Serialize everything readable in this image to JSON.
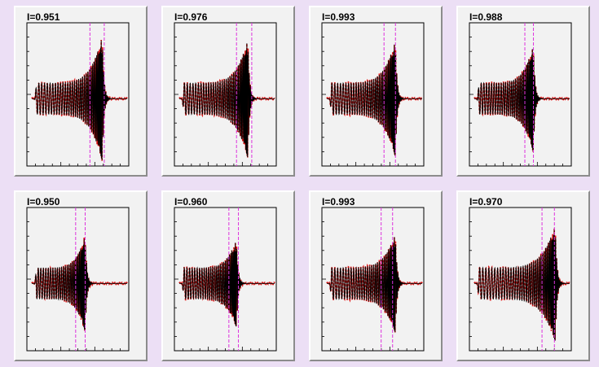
{
  "colors": {
    "background": "#ecdff5",
    "panel": "#f2f2f2",
    "waveform_model": "#000000",
    "waveform_data": "#dd1111",
    "window_lines": "#dd33dd"
  },
  "chart_data": [
    {
      "type": "line",
      "title": "I=0.951",
      "merger_at": 0.74,
      "window": [
        0.61,
        0.76
      ],
      "peak": 0.88,
      "series": [
        {
          "values": "model waveform"
        },
        {
          "values": "reconstructed waveform"
        }
      ]
    },
    {
      "type": "line",
      "title": "I=0.976",
      "merger_at": 0.72,
      "window": [
        0.6,
        0.76
      ],
      "peak": 0.84,
      "series": [
        {
          "values": "model waveform"
        },
        {
          "values": "reconstructed waveform"
        }
      ]
    },
    {
      "type": "line",
      "title": "I=0.993",
      "merger_at": 0.72,
      "window": [
        0.6,
        0.72
      ],
      "peak": 0.82,
      "series": [
        {
          "values": "model waveform"
        },
        {
          "values": "reconstructed waveform"
        }
      ]
    },
    {
      "type": "line",
      "title": "I=0.988",
      "merger_at": 0.62,
      "window": [
        0.53,
        0.62
      ],
      "peak": 0.76,
      "series": [
        {
          "values": "model waveform"
        },
        {
          "values": "reconstructed waveform"
        }
      ]
    },
    {
      "type": "line",
      "title": "I=0.950",
      "merger_at": 0.56,
      "window": [
        0.46,
        0.56
      ],
      "peak": 0.68,
      "series": [
        {
          "values": "model waveform"
        },
        {
          "values": "reconstructed waveform"
        }
      ]
    },
    {
      "type": "line",
      "title": "I=0.960",
      "merger_at": 0.6,
      "window": [
        0.52,
        0.62
      ],
      "peak": 0.62,
      "series": [
        {
          "values": "model waveform"
        },
        {
          "values": "reconstructed waveform"
        }
      ]
    },
    {
      "type": "line",
      "title": "I=0.993",
      "merger_at": 0.72,
      "window": [
        0.57,
        0.69
      ],
      "peak": 0.7,
      "series": [
        {
          "values": "model waveform"
        },
        {
          "values": "reconstructed waveform"
        }
      ]
    },
    {
      "type": "line",
      "title": "I=0.970",
      "merger_at": 0.85,
      "window": [
        0.71,
        0.84
      ],
      "peak": 0.82,
      "series": [
        {
          "values": "model waveform"
        },
        {
          "values": "reconstructed waveform"
        }
      ]
    }
  ]
}
